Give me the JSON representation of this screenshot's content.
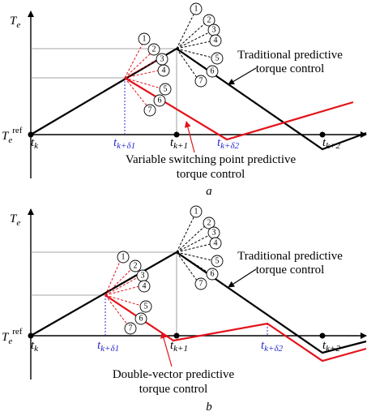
{
  "panel_a": {
    "y_axis_label": "T",
    "y_axis_sub": "e",
    "ref_label": "T",
    "ref_sub": "e",
    "ref_sup": "ref",
    "tick_k": "t",
    "tick_k_sub": "k",
    "tick_k1": "t",
    "tick_k1_sub": "k+1",
    "tick_k2": "t",
    "tick_k2_sub": "k+2",
    "tick_d1": "t",
    "tick_d1_sub": "k+δ1",
    "tick_d2": "t",
    "tick_d2_sub": "k+δ2",
    "trad_line1": "Traditional predictive",
    "trad_line2": "torque control",
    "method_line1": "Variable switching point predictive",
    "method_line2": "torque control",
    "caption": "a",
    "vectors": [
      "1",
      "2",
      "3",
      "4",
      "5",
      "6",
      "7"
    ]
  },
  "panel_b": {
    "y_axis_label": "T",
    "y_axis_sub": "e",
    "ref_label": "T",
    "ref_sub": "e",
    "ref_sup": "ref",
    "tick_k": "t",
    "tick_k_sub": "k",
    "tick_k1": "t",
    "tick_k1_sub": "k+1",
    "tick_k2": "t",
    "tick_k2_sub": "k+2",
    "tick_d1": "t",
    "tick_d1_sub": "k+δ1",
    "tick_d2": "t",
    "tick_d2_sub": "k+δ2",
    "trad_line1": "Traditional predictive",
    "trad_line2": "torque control",
    "method_line1": "Double-vector predictive",
    "method_line2": "torque control",
    "caption": "b",
    "vectors": [
      "1",
      "2",
      "3",
      "4",
      "5",
      "6",
      "7"
    ]
  },
  "colors": {
    "traditional": "#000000",
    "proposed": "#e3131a",
    "intermediate_time": "#2a2ad0"
  }
}
